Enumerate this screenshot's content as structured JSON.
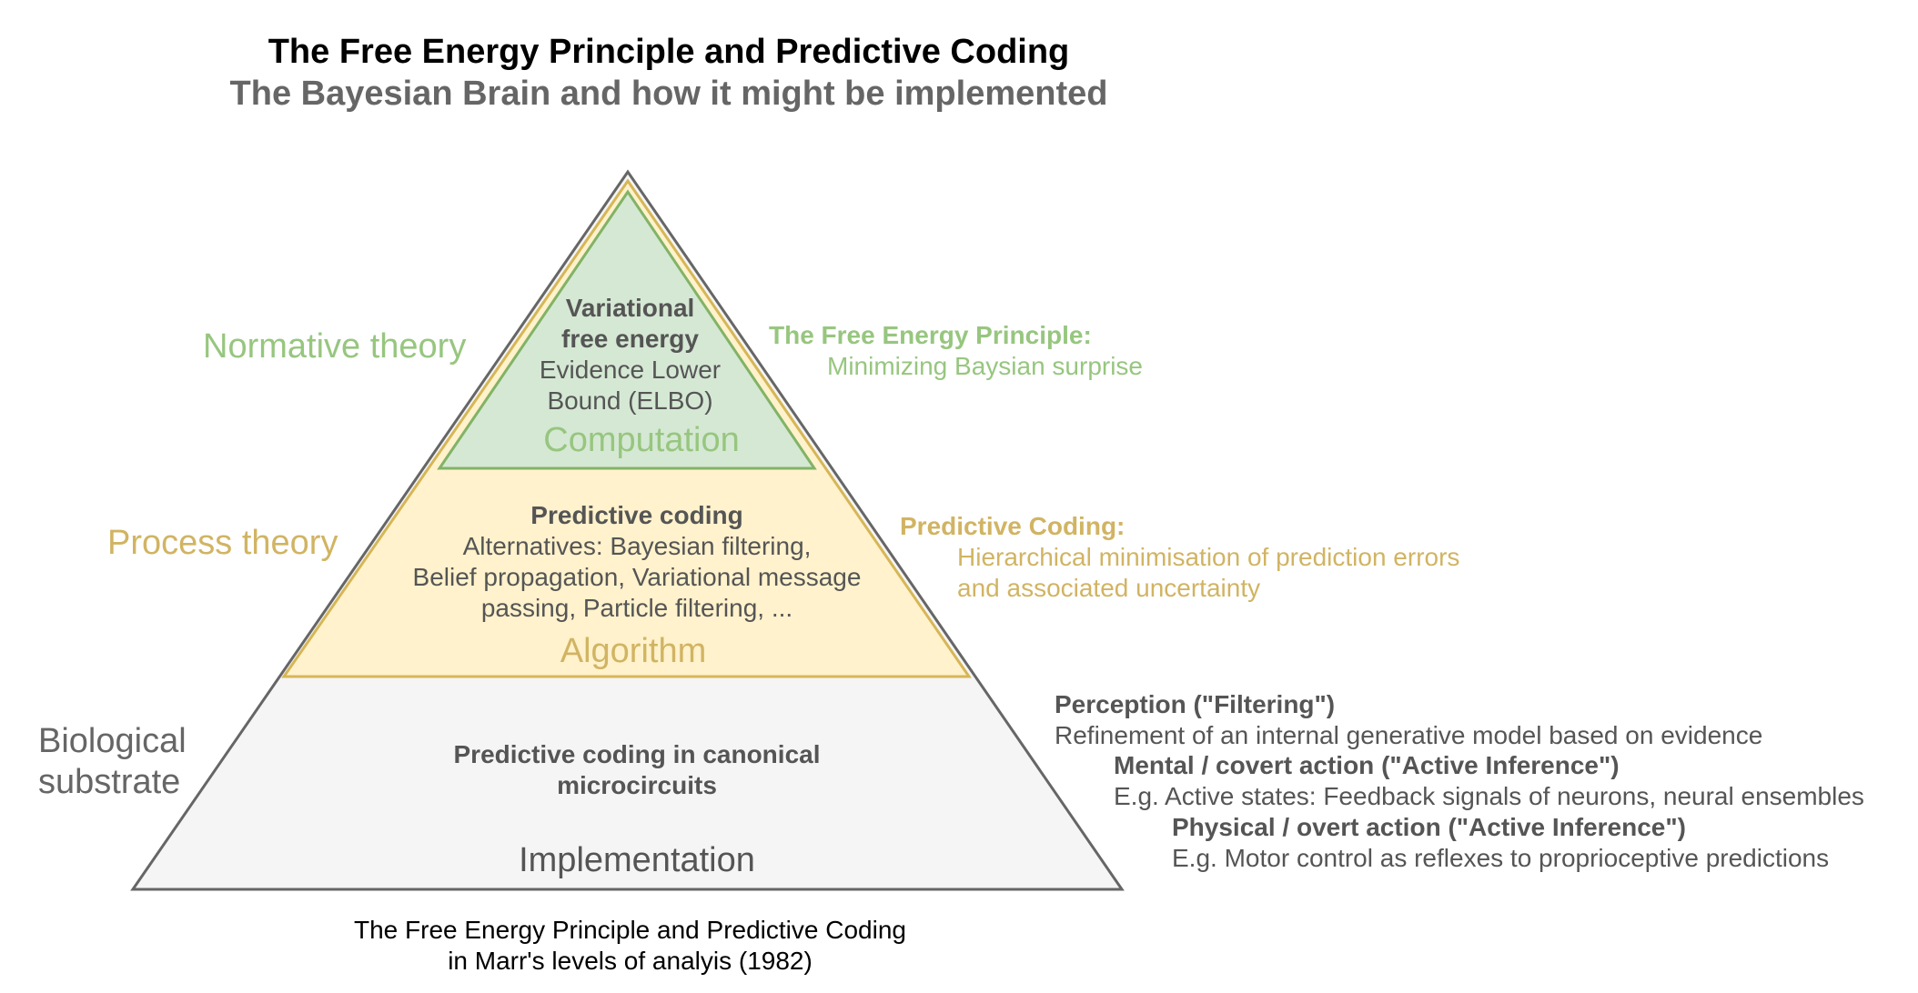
{
  "title": "The Free Energy Principle and Predictive Coding",
  "subtitle": "The Bayesian Brain and how it might be implemented",
  "levels": {
    "normative": "Normative theory",
    "process": "Process theory",
    "biological": "Biological substrate"
  },
  "pyramid": {
    "top": {
      "line1": "Variational",
      "line2": "free energy",
      "line3": "Evidence Lower",
      "line4": "Bound (ELBO)",
      "label": "Computation"
    },
    "middle": {
      "heading": "Predictive coding",
      "line1": "Alternatives: Bayesian filtering,",
      "line2": "Belief propagation, Variational message",
      "line3": "passing, Particle filtering, ...",
      "label": "Algorithm"
    },
    "bottom": {
      "line1": "Predictive coding in canonical",
      "line2": "microcircuits",
      "label": "Implementation"
    }
  },
  "annotations": {
    "fep": {
      "title": "The Free Energy Principle:",
      "desc": "Minimizing Baysian surprise"
    },
    "predictive_coding": {
      "title": "Predictive Coding:",
      "desc1": "Hierarchical minimisation of prediction errors",
      "desc2": "and associated uncertainty"
    },
    "perception": {
      "title": "Perception (\"Filtering\")",
      "desc": "Refinement of an internal generative model based on evidence"
    },
    "mental": {
      "title": "Mental / covert action (\"Active Inference\")",
      "desc": "E.g. Active states: Feedback signals of neurons, neural ensembles"
    },
    "physical": {
      "title": "Physical / overt action (\"Active Inference\")",
      "desc": "E.g. Motor control as reflexes to proprioceptive predictions"
    }
  },
  "caption": {
    "line1": "The Free Energy Principle and Predictive Coding",
    "line2": "in Marr's levels of analyis (1982)"
  },
  "colors": {
    "green_fill": "#d5e8d4",
    "green_stroke": "#82b366",
    "green_text": "#97c67f",
    "yellow_fill": "#fff2cc",
    "yellow_stroke": "#d6b656",
    "yellow_text": "#d1b463",
    "gray_fill": "#f5f5f5",
    "gray_stroke": "#666666",
    "gray_text": "#555555"
  }
}
